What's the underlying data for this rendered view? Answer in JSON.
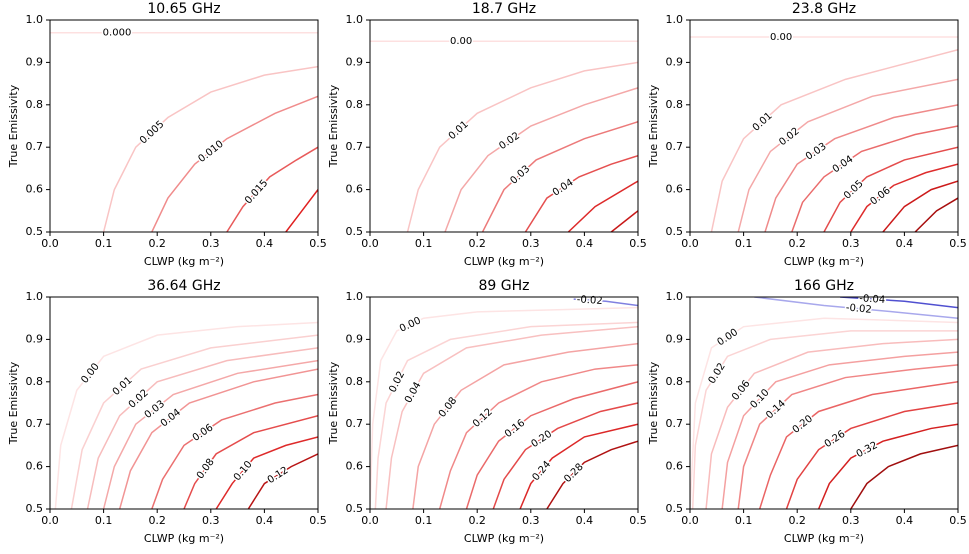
{
  "chart_data": [
    {
      "type": "contour",
      "title": "10.65 GHz",
      "xlabel": "CLWP (kg m⁻²)",
      "ylabel": "True Emissivity",
      "xlim": [
        0,
        0.5
      ],
      "ylim": [
        0.5,
        1.0
      ],
      "xticks": [
        {
          "value": 0,
          "label": "0.0"
        },
        0.1,
        0.2,
        0.3,
        0.4,
        0.5
      ],
      "yticks": [
        0.5,
        0.6,
        0.7,
        0.8,
        0.9,
        {
          "value": 1,
          "label": "1.0"
        }
      ],
      "contours": [
        {
          "label": "0.000",
          "color": "#fde0e0",
          "x": [
            0,
            0.25,
            0.5
          ],
          "y": [
            0.97,
            0.97,
            0.97
          ]
        },
        {
          "label": "0.005",
          "color": "#f9c4c4",
          "x": [
            0.1,
            0.12,
            0.16,
            0.22,
            0.3,
            0.4,
            0.5
          ],
          "y": [
            0.5,
            0.6,
            0.7,
            0.77,
            0.83,
            0.87,
            0.89
          ]
        },
        {
          "label": "0.010",
          "color": "#f08c8c",
          "x": [
            0.19,
            0.22,
            0.27,
            0.33,
            0.42,
            0.5
          ],
          "y": [
            0.5,
            0.58,
            0.66,
            0.72,
            0.78,
            0.82
          ]
        },
        {
          "label": "0.015",
          "color": "#e85a5a",
          "x": [
            0.33,
            0.36,
            0.41,
            0.46,
            0.5
          ],
          "y": [
            0.5,
            0.56,
            0.63,
            0.67,
            0.7
          ]
        },
        {
          "color": "#e02020",
          "x": [
            0.44,
            0.47,
            0.5
          ],
          "y": [
            0.5,
            0.55,
            0.6
          ]
        }
      ]
    },
    {
      "type": "contour",
      "title": "18.7 GHz",
      "xlabel": "CLWP (kg m⁻²)",
      "ylabel": "True Emissivity",
      "xlim": [
        0,
        0.5
      ],
      "ylim": [
        0.5,
        1.0
      ],
      "xticks": [
        {
          "value": 0,
          "label": "0.0"
        },
        0.1,
        0.2,
        0.3,
        0.4,
        0.5
      ],
      "yticks": [
        0.5,
        0.6,
        0.7,
        0.8,
        0.9,
        {
          "value": 1,
          "label": "1.0"
        }
      ],
      "contours": [
        {
          "label": "0.00",
          "color": "#fde0e0",
          "x": [
            0,
            0.34,
            0.5
          ],
          "y": [
            0.95,
            0.95,
            0.95
          ]
        },
        {
          "label": "0.01",
          "color": "#f9c4c4",
          "x": [
            0.07,
            0.09,
            0.13,
            0.2,
            0.3,
            0.4,
            0.5
          ],
          "y": [
            0.5,
            0.6,
            0.7,
            0.78,
            0.84,
            0.88,
            0.9
          ]
        },
        {
          "label": "0.02",
          "color": "#f4a8a8",
          "x": [
            0.14,
            0.17,
            0.22,
            0.3,
            0.4,
            0.5
          ],
          "y": [
            0.5,
            0.6,
            0.68,
            0.75,
            0.8,
            0.84
          ]
        },
        {
          "label": "0.03",
          "color": "#ec7a7a",
          "x": [
            0.21,
            0.25,
            0.31,
            0.4,
            0.5
          ],
          "y": [
            0.5,
            0.6,
            0.67,
            0.72,
            0.76
          ]
        },
        {
          "label": "0.04",
          "color": "#e55050",
          "x": [
            0.29,
            0.33,
            0.39,
            0.45,
            0.5
          ],
          "y": [
            0.5,
            0.58,
            0.63,
            0.66,
            0.68
          ]
        },
        {
          "color": "#dd2a2a",
          "x": [
            0.37,
            0.42,
            0.5
          ],
          "y": [
            0.5,
            0.56,
            0.62
          ]
        },
        {
          "color": "#c81818",
          "x": [
            0.45,
            0.5
          ],
          "y": [
            0.5,
            0.55
          ]
        }
      ]
    },
    {
      "type": "contour",
      "title": "23.8 GHz",
      "xlabel": "CLWP (kg m⁻²)",
      "ylabel": "True Emissivity",
      "xlim": [
        0,
        0.5
      ],
      "ylim": [
        0.5,
        1.0
      ],
      "xticks": [
        {
          "value": 0,
          "label": "0.0"
        },
        0.1,
        0.2,
        0.3,
        0.4,
        0.5
      ],
      "yticks": [
        0.5,
        0.6,
        0.7,
        0.8,
        0.9,
        {
          "value": 1,
          "label": "1.0"
        }
      ],
      "contours": [
        {
          "label": "0.00",
          "color": "#fde0e0",
          "x": [
            0,
            0.34,
            0.5
          ],
          "y": [
            0.96,
            0.96,
            0.96
          ]
        },
        {
          "label": "0.01",
          "color": "#f9c4c4",
          "x": [
            0.04,
            0.06,
            0.1,
            0.17,
            0.29,
            0.5
          ],
          "y": [
            0.5,
            0.62,
            0.72,
            0.8,
            0.86,
            0.93
          ]
        },
        {
          "label": "0.02",
          "color": "#f4a8a8",
          "x": [
            0.09,
            0.11,
            0.15,
            0.22,
            0.34,
            0.5
          ],
          "y": [
            0.5,
            0.6,
            0.69,
            0.76,
            0.82,
            0.86
          ]
        },
        {
          "label": "0.03",
          "color": "#ef8a8a",
          "x": [
            0.14,
            0.16,
            0.2,
            0.27,
            0.38,
            0.5
          ],
          "y": [
            0.5,
            0.58,
            0.66,
            0.72,
            0.77,
            0.8
          ]
        },
        {
          "label": "0.04",
          "color": "#ea6c6c",
          "x": [
            0.19,
            0.21,
            0.25,
            0.32,
            0.42,
            0.5
          ],
          "y": [
            0.5,
            0.57,
            0.63,
            0.69,
            0.73,
            0.75
          ]
        },
        {
          "label": "0.05",
          "color": "#e44c4c",
          "x": [
            0.25,
            0.28,
            0.33,
            0.4,
            0.5
          ],
          "y": [
            0.5,
            0.57,
            0.63,
            0.67,
            0.7
          ]
        },
        {
          "label": "0.06",
          "color": "#de2c2c",
          "x": [
            0.3,
            0.33,
            0.38,
            0.44,
            0.5
          ],
          "y": [
            0.5,
            0.56,
            0.61,
            0.64,
            0.66
          ]
        },
        {
          "color": "#cc1a1a",
          "x": [
            0.36,
            0.4,
            0.45,
            0.5
          ],
          "y": [
            0.5,
            0.56,
            0.6,
            0.62
          ]
        },
        {
          "color": "#a80e0e",
          "x": [
            0.42,
            0.46,
            0.5
          ],
          "y": [
            0.5,
            0.55,
            0.58
          ]
        }
      ]
    },
    {
      "type": "contour",
      "title": "36.64 GHz",
      "xlabel": "CLWP (kg m⁻²)",
      "ylabel": "True Emissivity",
      "xlim": [
        0,
        0.5
      ],
      "ylim": [
        0.5,
        1.0
      ],
      "xticks": [
        {
          "value": 0,
          "label": "0.0"
        },
        0.1,
        0.2,
        0.3,
        0.4,
        0.5
      ],
      "yticks": [
        0.5,
        0.6,
        0.7,
        0.8,
        0.9,
        {
          "value": 1,
          "label": "1.0"
        }
      ],
      "contours": [
        {
          "label": "0.00",
          "color": "#fde4e4",
          "x": [
            0.01,
            0.02,
            0.05,
            0.1,
            0.2,
            0.35,
            0.5
          ],
          "y": [
            0.5,
            0.65,
            0.78,
            0.86,
            0.91,
            0.93,
            0.94
          ]
        },
        {
          "label": "0.01",
          "color": "#fad0d0",
          "x": [
            0.04,
            0.06,
            0.1,
            0.17,
            0.3,
            0.5
          ],
          "y": [
            0.5,
            0.64,
            0.75,
            0.83,
            0.88,
            0.91
          ]
        },
        {
          "label": "0.02",
          "color": "#f7bcbc",
          "x": [
            0.07,
            0.09,
            0.13,
            0.2,
            0.33,
            0.5
          ],
          "y": [
            0.5,
            0.62,
            0.72,
            0.8,
            0.85,
            0.88
          ]
        },
        {
          "label": "0.03",
          "color": "#f4a8a8",
          "x": [
            0.1,
            0.12,
            0.16,
            0.23,
            0.35,
            0.5
          ],
          "y": [
            0.5,
            0.6,
            0.7,
            0.77,
            0.82,
            0.85
          ]
        },
        {
          "label": "0.04",
          "color": "#f19494",
          "x": [
            0.13,
            0.15,
            0.19,
            0.26,
            0.38,
            0.5
          ],
          "y": [
            0.5,
            0.59,
            0.68,
            0.75,
            0.8,
            0.83
          ]
        },
        {
          "label": "0.06",
          "color": "#eb7070",
          "x": [
            0.19,
            0.21,
            0.25,
            0.32,
            0.42,
            0.5
          ],
          "y": [
            0.5,
            0.57,
            0.65,
            0.71,
            0.75,
            0.77
          ]
        },
        {
          "label": "0.08",
          "color": "#e54c4c",
          "x": [
            0.25,
            0.27,
            0.31,
            0.38,
            0.5
          ],
          "y": [
            0.5,
            0.56,
            0.63,
            0.68,
            0.72
          ]
        },
        {
          "label": "0.10",
          "color": "#de2a2a",
          "x": [
            0.31,
            0.34,
            0.38,
            0.44,
            0.5
          ],
          "y": [
            0.5,
            0.56,
            0.62,
            0.65,
            0.67
          ]
        },
        {
          "label": "0.12",
          "color": "#b81414",
          "x": [
            0.37,
            0.4,
            0.45,
            0.5
          ],
          "y": [
            0.5,
            0.56,
            0.6,
            0.63
          ]
        }
      ]
    },
    {
      "type": "contour",
      "title": "89 GHz",
      "xlabel": "CLWP (kg m⁻²)",
      "ylabel": "True Emissivity",
      "xlim": [
        0,
        0.5
      ],
      "ylim": [
        0.5,
        1.0
      ],
      "xticks": [
        {
          "value": 0,
          "label": "0.0"
        },
        0.1,
        0.2,
        0.3,
        0.4,
        0.5
      ],
      "yticks": [
        0.5,
        0.6,
        0.7,
        0.8,
        0.9,
        {
          "value": 1,
          "label": "1.0"
        }
      ],
      "contours": [
        {
          "label": "-0.02",
          "color": "#8080e0",
          "x": [
            0.38,
            0.44,
            0.5
          ],
          "y": [
            0.995,
            0.99,
            0.98
          ]
        },
        {
          "label": "0.00",
          "color": "#fde4e4",
          "x": [
            0,
            0.005,
            0.02,
            0.05,
            0.1,
            0.2,
            0.35,
            0.5
          ],
          "y": [
            0.5,
            0.7,
            0.85,
            0.92,
            0.95,
            0.965,
            0.97,
            0.975
          ]
        },
        {
          "label": "0.02",
          "color": "#fbd4d4",
          "x": [
            0.01,
            0.015,
            0.03,
            0.07,
            0.15,
            0.3,
            0.5
          ],
          "y": [
            0.5,
            0.62,
            0.75,
            0.85,
            0.9,
            0.93,
            0.94
          ]
        },
        {
          "label": "0.04",
          "color": "#f8c0c0",
          "x": [
            0.03,
            0.04,
            0.06,
            0.1,
            0.18,
            0.32,
            0.5
          ],
          "y": [
            0.5,
            0.62,
            0.73,
            0.82,
            0.88,
            0.91,
            0.93
          ]
        },
        {
          "label": "0.08",
          "color": "#f4a4a4",
          "x": [
            0.08,
            0.09,
            0.12,
            0.17,
            0.25,
            0.37,
            0.5
          ],
          "y": [
            0.5,
            0.6,
            0.7,
            0.78,
            0.84,
            0.87,
            0.89
          ]
        },
        {
          "label": "0.12",
          "color": "#f08888",
          "x": [
            0.13,
            0.15,
            0.18,
            0.24,
            0.32,
            0.42,
            0.5
          ],
          "y": [
            0.5,
            0.59,
            0.68,
            0.75,
            0.8,
            0.83,
            0.84
          ]
        },
        {
          "label": "0.16",
          "color": "#ea6a6a",
          "x": [
            0.18,
            0.2,
            0.24,
            0.3,
            0.38,
            0.5
          ],
          "y": [
            0.5,
            0.58,
            0.66,
            0.72,
            0.76,
            0.8
          ]
        },
        {
          "label": "0.20",
          "color": "#e44a4a",
          "x": [
            0.23,
            0.25,
            0.29,
            0.35,
            0.43,
            0.5
          ],
          "y": [
            0.5,
            0.57,
            0.64,
            0.69,
            0.73,
            0.75
          ]
        },
        {
          "label": "0.24",
          "color": "#dc2828",
          "x": [
            0.28,
            0.3,
            0.34,
            0.4,
            0.5
          ],
          "y": [
            0.5,
            0.56,
            0.62,
            0.67,
            0.7
          ]
        },
        {
          "label": "0.28",
          "color": "#b01212",
          "x": [
            0.33,
            0.36,
            0.4,
            0.45,
            0.5
          ],
          "y": [
            0.5,
            0.56,
            0.61,
            0.64,
            0.66
          ]
        }
      ]
    },
    {
      "type": "contour",
      "title": "166 GHz",
      "xlabel": "CLWP (kg m⁻²)",
      "ylabel": "True Emissivity",
      "xlim": [
        0,
        0.5
      ],
      "ylim": [
        0.5,
        1.0
      ],
      "xticks": [
        {
          "value": 0,
          "label": "0.0"
        },
        0.1,
        0.2,
        0.3,
        0.4,
        0.5
      ],
      "yticks": [
        0.5,
        0.6,
        0.7,
        0.8,
        0.9,
        {
          "value": 1,
          "label": "1.0"
        }
      ],
      "contours": [
        {
          "label": "-0.04",
          "color": "#5050d0",
          "x": [
            0.28,
            0.4,
            0.5
          ],
          "y": [
            1.0,
            0.99,
            0.975
          ]
        },
        {
          "label": "-0.02",
          "color": "#a8a8ec",
          "x": [
            0.12,
            0.25,
            0.38,
            0.5
          ],
          "y": [
            1.0,
            0.98,
            0.965,
            0.95
          ]
        },
        {
          "label": "0.00",
          "color": "#fde4e4",
          "x": [
            0,
            0.01,
            0.04,
            0.1,
            0.25,
            0.5
          ],
          "y": [
            0.5,
            0.75,
            0.88,
            0.93,
            0.95,
            0.94
          ]
        },
        {
          "label": "0.02",
          "color": "#fbd4d4",
          "x": [
            0.005,
            0.01,
            0.03,
            0.07,
            0.15,
            0.3,
            0.5
          ],
          "y": [
            0.5,
            0.65,
            0.78,
            0.86,
            0.9,
            0.92,
            0.92
          ]
        },
        {
          "label": "0.06",
          "color": "#f8bcbc",
          "x": [
            0.03,
            0.04,
            0.07,
            0.12,
            0.22,
            0.36,
            0.5
          ],
          "y": [
            0.5,
            0.63,
            0.74,
            0.82,
            0.87,
            0.89,
            0.9
          ]
        },
        {
          "label": "0.10",
          "color": "#f4a0a0",
          "x": [
            0.06,
            0.07,
            0.1,
            0.16,
            0.26,
            0.4,
            0.5
          ],
          "y": [
            0.5,
            0.61,
            0.72,
            0.8,
            0.84,
            0.86,
            0.87
          ]
        },
        {
          "label": "0.14",
          "color": "#f08686",
          "x": [
            0.09,
            0.1,
            0.13,
            0.19,
            0.29,
            0.42,
            0.5
          ],
          "y": [
            0.5,
            0.6,
            0.7,
            0.77,
            0.81,
            0.83,
            0.84
          ]
        },
        {
          "label": "0.20",
          "color": "#ea6464",
          "x": [
            0.13,
            0.15,
            0.18,
            0.24,
            0.34,
            0.5
          ],
          "y": [
            0.5,
            0.58,
            0.67,
            0.73,
            0.77,
            0.8
          ]
        },
        {
          "label": "0.26",
          "color": "#e24242",
          "x": [
            0.18,
            0.2,
            0.24,
            0.3,
            0.4,
            0.5
          ],
          "y": [
            0.5,
            0.57,
            0.64,
            0.69,
            0.73,
            0.75
          ]
        },
        {
          "label": "0.32",
          "color": "#d42020",
          "x": [
            0.24,
            0.26,
            0.3,
            0.36,
            0.45,
            0.5
          ],
          "y": [
            0.5,
            0.56,
            0.62,
            0.66,
            0.69,
            0.7
          ]
        },
        {
          "color": "#a00e0e",
          "x": [
            0.3,
            0.33,
            0.37,
            0.43,
            0.5
          ],
          "y": [
            0.5,
            0.56,
            0.6,
            0.63,
            0.65
          ]
        }
      ]
    }
  ]
}
